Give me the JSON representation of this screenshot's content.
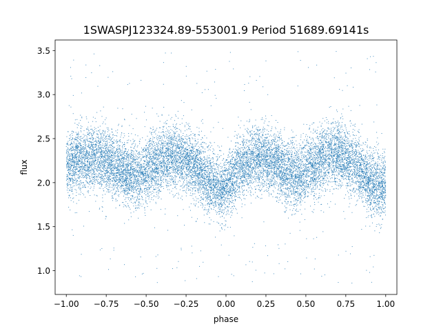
{
  "chart_data": {
    "type": "scatter",
    "title": "1SWASPJ123324.89-553001.9 Period 51689.69141s",
    "xlabel": "phase",
    "ylabel": "flux",
    "xlim": [
      -1.07,
      1.07
    ],
    "ylim": [
      0.73,
      3.62
    ],
    "x_ticks": [
      -1.0,
      -0.75,
      -0.5,
      -0.25,
      0.0,
      0.25,
      0.5,
      0.75,
      1.0
    ],
    "x_tick_labels": [
      "−1.00",
      "−0.75",
      "−0.50",
      "−0.25",
      "0.00",
      "0.25",
      "0.50",
      "0.75",
      "1.00"
    ],
    "y_ticks": [
      1.0,
      1.5,
      2.0,
      2.5,
      3.0,
      3.5
    ],
    "y_tick_labels": [
      "1.0",
      "1.5",
      "2.0",
      "2.5",
      "3.0",
      "3.5"
    ],
    "grid": false,
    "legend": "none",
    "marker_color": "#1f77b4",
    "phase_range": [
      -1.0,
      1.0
    ],
    "approx_point_count": 14000,
    "mean_flux_profile": {
      "phase": [
        -1.0,
        -0.9,
        -0.8,
        -0.7,
        -0.6,
        -0.55,
        -0.45,
        -0.35,
        -0.3,
        -0.2,
        -0.1,
        -0.02,
        0.0,
        0.1,
        0.2,
        0.3,
        0.4,
        0.45,
        0.55,
        0.65,
        0.7,
        0.8,
        0.9,
        0.98,
        1.0
      ],
      "flux": [
        2.2,
        2.25,
        2.28,
        2.2,
        2.1,
        2.07,
        2.2,
        2.3,
        2.3,
        2.2,
        2.0,
        1.93,
        1.97,
        2.2,
        2.28,
        2.25,
        2.1,
        2.07,
        2.2,
        2.3,
        2.32,
        2.22,
        2.0,
        1.95,
        2.05
      ]
    },
    "scatter_std": 0.18,
    "outlier_range": [
      0.85,
      3.5
    ]
  }
}
